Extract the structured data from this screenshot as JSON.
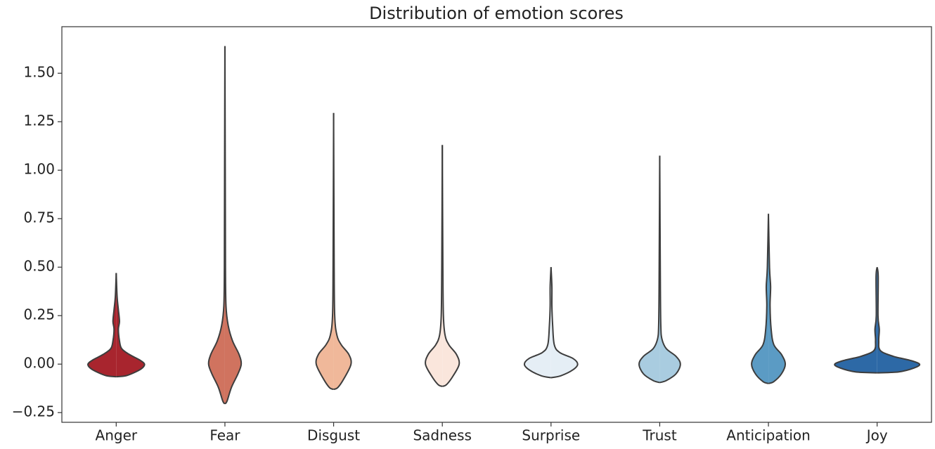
{
  "chart_data": {
    "type": "violin",
    "title": "Distribution of emotion scores",
    "categories": [
      "Anger",
      "Fear",
      "Disgust",
      "Sadness",
      "Surprise",
      "Trust",
      "Anticipation",
      "Joy"
    ],
    "violins": [
      {
        "color": "#a8252e",
        "y": [
          -0.065,
          -0.06,
          -0.04,
          -0.02,
          0,
          0.02,
          0.05,
          0.08,
          0.12,
          0.18,
          0.22,
          0.28,
          0.35,
          0.47
        ],
        "width": [
          0,
          0.09,
          0.18,
          0.24,
          0.26,
          0.22,
          0.12,
          0.05,
          0.03,
          0.02,
          0.03,
          0.02,
          0.008,
          0
        ]
      },
      {
        "color": "#d0735f",
        "y": [
          -0.205,
          -0.19,
          -0.12,
          -0.05,
          0,
          0.05,
          0.12,
          0.2,
          0.3,
          0.5,
          1.0,
          1.64
        ],
        "width": [
          0,
          0.02,
          0.06,
          0.12,
          0.15,
          0.13,
          0.07,
          0.03,
          0.01,
          0.005,
          0.003,
          0
        ]
      },
      {
        "color": "#f0b89a",
        "y": [
          -0.13,
          -0.12,
          -0.07,
          0,
          0.05,
          0.1,
          0.15,
          0.25,
          0.5,
          1.295
        ],
        "width": [
          0,
          0.04,
          0.1,
          0.16,
          0.14,
          0.07,
          0.03,
          0.01,
          0.005,
          0
        ]
      },
      {
        "color": "#fae6dc",
        "y": [
          -0.115,
          -0.105,
          -0.06,
          0,
          0.05,
          0.1,
          0.15,
          0.25,
          0.5,
          1.13
        ],
        "width": [
          0,
          0.04,
          0.1,
          0.155,
          0.13,
          0.06,
          0.025,
          0.01,
          0.005,
          0
        ]
      },
      {
        "color": "#e5eef5",
        "y": [
          -0.07,
          -0.06,
          -0.03,
          0,
          0.03,
          0.06,
          0.1,
          0.2,
          0.3,
          0.4,
          0.5
        ],
        "width": [
          0,
          0.09,
          0.2,
          0.245,
          0.2,
          0.08,
          0.03,
          0.015,
          0.008,
          0.008,
          0
        ]
      },
      {
        "color": "#a9cce0",
        "y": [
          -0.095,
          -0.085,
          -0.05,
          0,
          0.04,
          0.08,
          0.13,
          0.2,
          0.4,
          1.075
        ],
        "width": [
          0,
          0.06,
          0.15,
          0.19,
          0.15,
          0.06,
          0.02,
          0.01,
          0.006,
          0
        ]
      },
      {
        "color": "#5b9bc4",
        "y": [
          -0.1,
          -0.09,
          -0.05,
          0,
          0.05,
          0.1,
          0.18,
          0.3,
          0.4,
          0.5,
          0.775
        ],
        "width": [
          0,
          0.05,
          0.12,
          0.155,
          0.12,
          0.05,
          0.025,
          0.015,
          0.02,
          0.01,
          0
        ]
      },
      {
        "color": "#2d69a6",
        "y": [
          -0.045,
          -0.04,
          -0.02,
          0,
          0.02,
          0.04,
          0.07,
          0.12,
          0.18,
          0.25,
          0.45,
          0.5
        ],
        "width": [
          0,
          0.2,
          0.34,
          0.39,
          0.3,
          0.15,
          0.03,
          0.015,
          0.02,
          0.008,
          0.01,
          0
        ]
      }
    ],
    "ylim": [
      -0.3,
      1.74
    ],
    "yticks": [
      {
        "value": -0.25,
        "label": "−0.25"
      },
      {
        "value": 0,
        "label": "0.00"
      },
      0.25,
      {
        "value": 0.5,
        "label": "0.50"
      },
      0.75,
      {
        "value": 1,
        "label": "1.00"
      },
      1.25,
      {
        "value": 1.5,
        "label": "1.50"
      }
    ]
  }
}
